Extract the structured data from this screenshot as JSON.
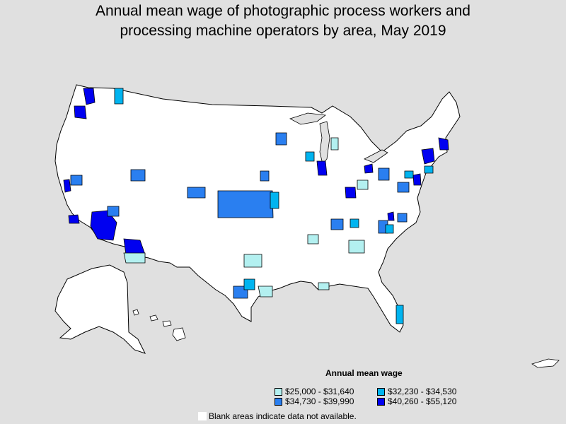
{
  "title": {
    "line1": "Annual mean wage of photographic process workers and",
    "line2": "processing machine operators by area, May 2019"
  },
  "legend": {
    "title": "Annual mean wage",
    "items": [
      {
        "label": "$25,000 - $31,640",
        "color": "#b3f0f0"
      },
      {
        "label": "$32,230 - $34,530",
        "color": "#00b4f0"
      },
      {
        "label": "$34,730 - $39,990",
        "color": "#2a7ff0"
      },
      {
        "label": "$40,260 - $55,120",
        "color": "#0000f0"
      }
    ]
  },
  "note": "Blank areas indicate data not available.",
  "colors": {
    "background": "#e0e0e0",
    "no_data": "#ffffff",
    "border": "#000000"
  }
}
